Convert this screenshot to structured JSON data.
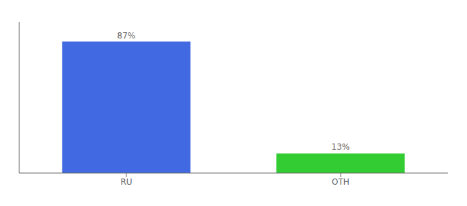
{
  "chart_data": {
    "type": "bar",
    "categories": [
      "RU",
      "OTH"
    ],
    "values": [
      87,
      13
    ],
    "colors": [
      "#4169e1",
      "#33cc33"
    ],
    "value_labels": [
      "87%",
      "13%"
    ],
    "data_labels": true,
    "ylim": [
      0,
      100
    ],
    "tick_labels": "x",
    "grid": false
  }
}
